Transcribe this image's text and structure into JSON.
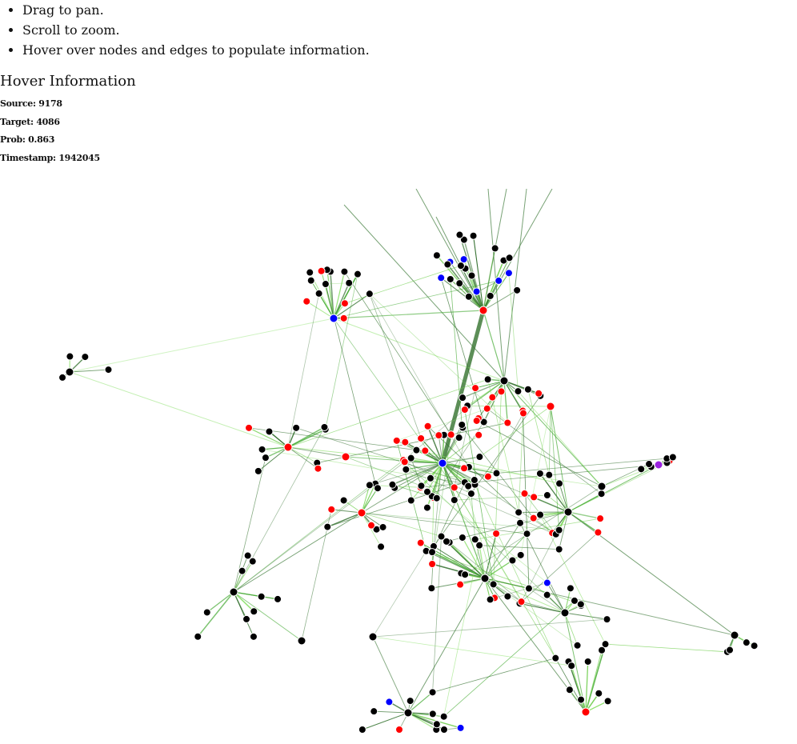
{
  "instructions": [
    "Drag to pan.",
    "Scroll to zoom.",
    "Hover over nodes and edges to populate information."
  ],
  "hover_panel": {
    "heading": "Hover Information",
    "source": "Source: 9178",
    "target": "Target: 4086",
    "prob": "Prob: 0.863",
    "timestamp": "Timestamp: 1942045"
  },
  "colors": {
    "node_default": "#000000",
    "node_red": "#ff0000",
    "node_blue": "#0000ff",
    "node_purple": "#9b22e0",
    "edge_dark": "#3f7a3a",
    "edge_mid": "#44aa33",
    "edge_light": "#88e066"
  },
  "graph": {
    "type": "network",
    "hubs": [
      {
        "color": "red"
      },
      {
        "color": "blue"
      },
      {
        "color": "black"
      },
      {
        "color": "black"
      },
      {
        "color": "blue"
      },
      {
        "color": "red"
      },
      {
        "color": "black"
      },
      {
        "color": "red"
      },
      {
        "color": "purple"
      },
      {
        "color": "black"
      },
      {
        "color": "black"
      },
      {
        "color": "red"
      },
      {
        "color": "black"
      },
      {
        "color": "black"
      },
      {
        "color": "red"
      },
      {
        "color": "red"
      },
      {
        "color": "black"
      },
      {
        "color": "black"
      },
      {
        "color": "black"
      },
      {
        "color": "black"
      }
    ]
  }
}
